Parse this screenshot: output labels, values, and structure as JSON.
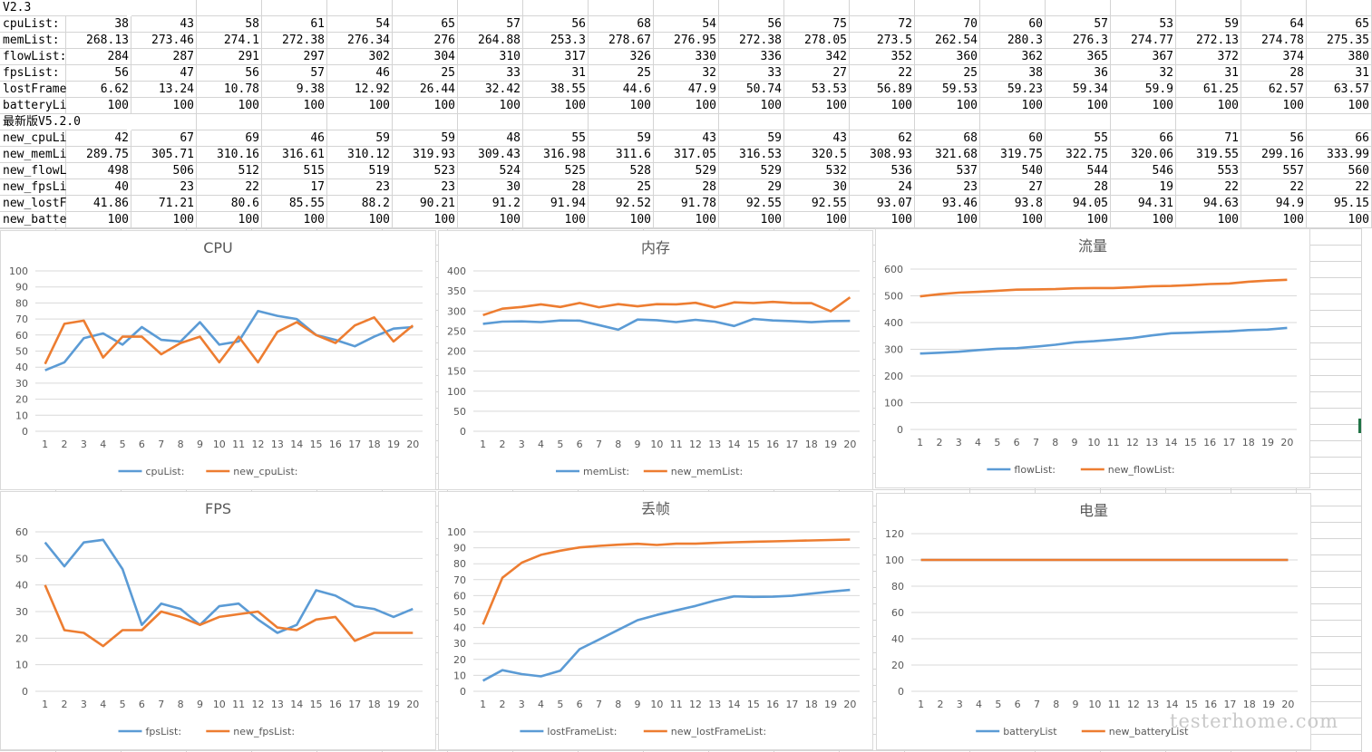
{
  "sheet": {
    "v1_title": "V2.3",
    "v1_rows": [
      {
        "label": "cpuList:",
        "values": [
          "38",
          "43",
          "58",
          "61",
          "54",
          "65",
          "57",
          "56",
          "68",
          "54",
          "56",
          "75",
          "72",
          "70",
          "60",
          "57",
          "53",
          "59",
          "64",
          "65"
        ]
      },
      {
        "label": "memList:",
        "values": [
          "268.13",
          "273.46",
          "274.1",
          "272.38",
          "276.34",
          "276",
          "264.88",
          "253.3",
          "278.67",
          "276.95",
          "272.38",
          "278.05",
          "273.5",
          "262.54",
          "280.3",
          "276.3",
          "274.77",
          "272.13",
          "274.78",
          "275.35"
        ]
      },
      {
        "label": "flowList:",
        "values": [
          "284",
          "287",
          "291",
          "297",
          "302",
          "304",
          "310",
          "317",
          "326",
          "330",
          "336",
          "342",
          "352",
          "360",
          "362",
          "365",
          "367",
          "372",
          "374",
          "380"
        ]
      },
      {
        "label": "fpsList:",
        "values": [
          "56",
          "47",
          "56",
          "57",
          "46",
          "25",
          "33",
          "31",
          "25",
          "32",
          "33",
          "27",
          "22",
          "25",
          "38",
          "36",
          "32",
          "31",
          "28",
          "31"
        ]
      },
      {
        "label": "lostFrame",
        "values": [
          "6.62",
          "13.24",
          "10.78",
          "9.38",
          "12.92",
          "26.44",
          "32.42",
          "38.55",
          "44.6",
          "47.9",
          "50.74",
          "53.53",
          "56.89",
          "59.53",
          "59.23",
          "59.34",
          "59.9",
          "61.25",
          "62.57",
          "63.57"
        ]
      },
      {
        "label": "batteryLi",
        "values": [
          "100",
          "100",
          "100",
          "100",
          "100",
          "100",
          "100",
          "100",
          "100",
          "100",
          "100",
          "100",
          "100",
          "100",
          "100",
          "100",
          "100",
          "100",
          "100",
          "100"
        ]
      }
    ],
    "v2_title": "最新版V5.2.0",
    "v2_rows": [
      {
        "label": "new_cpuLi",
        "values": [
          "42",
          "67",
          "69",
          "46",
          "59",
          "59",
          "48",
          "55",
          "59",
          "43",
          "59",
          "43",
          "62",
          "68",
          "60",
          "55",
          "66",
          "71",
          "56",
          "66"
        ]
      },
      {
        "label": "new_memLi",
        "values": [
          "289.75",
          "305.71",
          "310.16",
          "316.61",
          "310.12",
          "319.93",
          "309.43",
          "316.98",
          "311.6",
          "317.05",
          "316.53",
          "320.5",
          "308.93",
          "321.68",
          "319.75",
          "322.75",
          "320.06",
          "319.55",
          "299.16",
          "333.99"
        ]
      },
      {
        "label": "new_flowL",
        "values": [
          "498",
          "506",
          "512",
          "515",
          "519",
          "523",
          "524",
          "525",
          "528",
          "529",
          "529",
          "532",
          "536",
          "537",
          "540",
          "544",
          "546",
          "553",
          "557",
          "560"
        ]
      },
      {
        "label": "new_fpsLi",
        "values": [
          "40",
          "23",
          "22",
          "17",
          "23",
          "23",
          "30",
          "28",
          "25",
          "28",
          "29",
          "30",
          "24",
          "23",
          "27",
          "28",
          "19",
          "22",
          "22",
          "22"
        ]
      },
      {
        "label": "new_lostF",
        "values": [
          "41.86",
          "71.21",
          "80.6",
          "85.55",
          "88.2",
          "90.21",
          "91.2",
          "91.94",
          "92.52",
          "91.78",
          "92.55",
          "92.55",
          "93.07",
          "93.46",
          "93.8",
          "94.05",
          "94.31",
          "94.63",
          "94.9",
          "95.15"
        ]
      },
      {
        "label": "new_batte",
        "values": [
          "100",
          "100",
          "100",
          "100",
          "100",
          "100",
          "100",
          "100",
          "100",
          "100",
          "100",
          "100",
          "100",
          "100",
          "100",
          "100",
          "100",
          "100",
          "100",
          "100"
        ]
      }
    ]
  },
  "colors": {
    "series_a": "#5b9bd5",
    "series_b": "#ed7d31",
    "gridline": "#d9d9d9",
    "axis_text": "#595959"
  },
  "chart_data": [
    {
      "type": "line",
      "title": "CPU",
      "categories": [
        "1",
        "2",
        "3",
        "4",
        "5",
        "6",
        "7",
        "8",
        "9",
        "10",
        "11",
        "12",
        "13",
        "14",
        "15",
        "16",
        "17",
        "18",
        "19",
        "20"
      ],
      "ylim": [
        0,
        100
      ],
      "yticks": [
        0,
        10,
        20,
        30,
        40,
        50,
        60,
        70,
        80,
        90,
        100
      ],
      "grid": true,
      "legend": "bottom",
      "series": [
        {
          "name": "cpuList:",
          "values": [
            38,
            43,
            58,
            61,
            54,
            65,
            57,
            56,
            68,
            54,
            56,
            75,
            72,
            70,
            60,
            57,
            53,
            59,
            64,
            65
          ]
        },
        {
          "name": "new_cpuList:",
          "values": [
            42,
            67,
            69,
            46,
            59,
            59,
            48,
            55,
            59,
            43,
            59,
            43,
            62,
            68,
            60,
            55,
            66,
            71,
            56,
            66
          ]
        }
      ]
    },
    {
      "type": "line",
      "title": "内存",
      "categories": [
        "1",
        "2",
        "3",
        "4",
        "5",
        "6",
        "7",
        "8",
        "9",
        "10",
        "11",
        "12",
        "13",
        "14",
        "15",
        "16",
        "17",
        "18",
        "19",
        "20"
      ],
      "ylim": [
        0,
        400
      ],
      "yticks": [
        0,
        50,
        100,
        150,
        200,
        250,
        300,
        350,
        400
      ],
      "grid": true,
      "legend": "bottom",
      "series": [
        {
          "name": "memList:",
          "values": [
            268.13,
            273.46,
            274.1,
            272.38,
            276.34,
            276,
            264.88,
            253.3,
            278.67,
            276.95,
            272.38,
            278.05,
            273.5,
            262.54,
            280.3,
            276.3,
            274.77,
            272.13,
            274.78,
            275.35
          ]
        },
        {
          "name": "new_memList:",
          "values": [
            289.75,
            305.71,
            310.16,
            316.61,
            310.12,
            319.93,
            309.43,
            316.98,
            311.6,
            317.05,
            316.53,
            320.5,
            308.93,
            321.68,
            319.75,
            322.75,
            320.06,
            319.55,
            299.16,
            333.99
          ]
        }
      ]
    },
    {
      "type": "line",
      "title": "流量",
      "categories": [
        "1",
        "2",
        "3",
        "4",
        "5",
        "6",
        "7",
        "8",
        "9",
        "10",
        "11",
        "12",
        "13",
        "14",
        "15",
        "16",
        "17",
        "18",
        "19",
        "20"
      ],
      "ylim": [
        0,
        600
      ],
      "yticks": [
        0,
        100,
        200,
        300,
        400,
        500,
        600
      ],
      "grid": true,
      "legend": "bottom",
      "series": [
        {
          "name": "flowList:",
          "values": [
            284,
            287,
            291,
            297,
            302,
            304,
            310,
            317,
            326,
            330,
            336,
            342,
            352,
            360,
            362,
            365,
            367,
            372,
            374,
            380
          ]
        },
        {
          "name": "new_flowList:",
          "values": [
            498,
            506,
            512,
            515,
            519,
            523,
            524,
            525,
            528,
            529,
            529,
            532,
            536,
            537,
            540,
            544,
            546,
            553,
            557,
            560
          ]
        }
      ]
    },
    {
      "type": "line",
      "title": "FPS",
      "categories": [
        "1",
        "2",
        "3",
        "4",
        "5",
        "6",
        "7",
        "8",
        "9",
        "10",
        "11",
        "12",
        "13",
        "14",
        "15",
        "16",
        "17",
        "18",
        "19",
        "20"
      ],
      "ylim": [
        0,
        60
      ],
      "yticks": [
        0,
        10,
        20,
        30,
        40,
        50,
        60
      ],
      "grid": true,
      "legend": "bottom",
      "series": [
        {
          "name": "fpsList:",
          "values": [
            56,
            47,
            56,
            57,
            46,
            25,
            33,
            31,
            25,
            32,
            33,
            27,
            22,
            25,
            38,
            36,
            32,
            31,
            28,
            31
          ]
        },
        {
          "name": "new_fpsList:",
          "values": [
            40,
            23,
            22,
            17,
            23,
            23,
            30,
            28,
            25,
            28,
            29,
            30,
            24,
            23,
            27,
            28,
            19,
            22,
            22,
            22
          ]
        }
      ]
    },
    {
      "type": "line",
      "title": "丢帧",
      "categories": [
        "1",
        "2",
        "3",
        "4",
        "5",
        "6",
        "7",
        "8",
        "9",
        "10",
        "11",
        "12",
        "13",
        "14",
        "15",
        "16",
        "17",
        "18",
        "19",
        "20"
      ],
      "ylim": [
        0,
        100
      ],
      "yticks": [
        0,
        10,
        20,
        30,
        40,
        50,
        60,
        70,
        80,
        90,
        100
      ],
      "grid": true,
      "legend": "bottom",
      "series": [
        {
          "name": "lostFrameList:",
          "values": [
            6.62,
            13.24,
            10.78,
            9.38,
            12.92,
            26.44,
            32.42,
            38.55,
            44.6,
            47.9,
            50.74,
            53.53,
            56.89,
            59.53,
            59.23,
            59.34,
            59.9,
            61.25,
            62.57,
            63.57
          ]
        },
        {
          "name": "new_lostFrameList:",
          "values": [
            41.86,
            71.21,
            80.6,
            85.55,
            88.2,
            90.21,
            91.2,
            91.94,
            92.52,
            91.78,
            92.55,
            92.55,
            93.07,
            93.46,
            93.8,
            94.05,
            94.31,
            94.63,
            94.9,
            95.15
          ]
        }
      ]
    },
    {
      "type": "line",
      "title": "电量",
      "categories": [
        "1",
        "2",
        "3",
        "4",
        "5",
        "6",
        "7",
        "8",
        "9",
        "10",
        "11",
        "12",
        "13",
        "14",
        "15",
        "16",
        "17",
        "18",
        "19",
        "20"
      ],
      "ylim": [
        0,
        120
      ],
      "yticks": [
        0,
        20,
        40,
        60,
        80,
        100,
        120
      ],
      "grid": true,
      "legend": "bottom",
      "series": [
        {
          "name": "batteryList",
          "values": [
            100,
            100,
            100,
            100,
            100,
            100,
            100,
            100,
            100,
            100,
            100,
            100,
            100,
            100,
            100,
            100,
            100,
            100,
            100,
            100
          ]
        },
        {
          "name": "new_batteryList",
          "values": [
            100,
            100,
            100,
            100,
            100,
            100,
            100,
            100,
            100,
            100,
            100,
            100,
            100,
            100,
            100,
            100,
            100,
            100,
            100,
            100
          ]
        }
      ]
    }
  ],
  "watermark": "testerhome.com"
}
